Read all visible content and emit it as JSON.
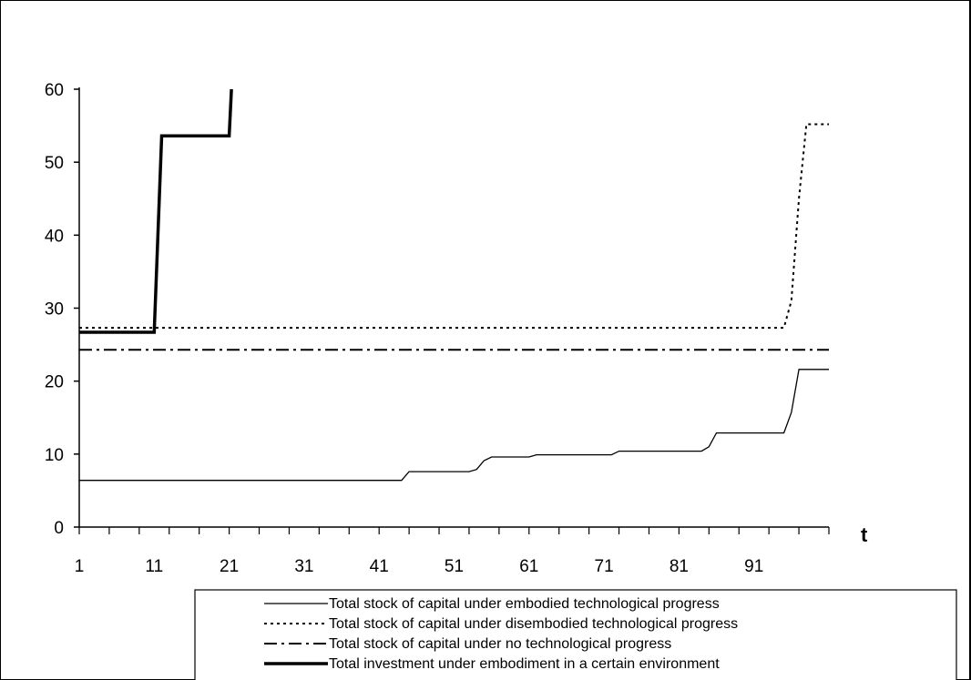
{
  "chart_data": {
    "type": "line",
    "xlabel": "t",
    "ylabel": "",
    "xlim": [
      1,
      101
    ],
    "ylim": [
      0,
      60
    ],
    "x_tick_labels": [
      "1",
      "11",
      "21",
      "31",
      "41",
      "51",
      "61",
      "71",
      "81",
      "91"
    ],
    "y_tick_labels": [
      "0",
      "10",
      "20",
      "30",
      "40",
      "50",
      "60"
    ],
    "grid": false,
    "legend_position": "bottom-right",
    "series": [
      {
        "name": "Total stock of capital under embodied technological progress",
        "style": "solid-thin",
        "color": "#000000",
        "points": [
          [
            1,
            6.4
          ],
          [
            44,
            6.4
          ],
          [
            45,
            7.6
          ],
          [
            53,
            7.6
          ],
          [
            54,
            7.9
          ],
          [
            55,
            9.1
          ],
          [
            56,
            9.6
          ],
          [
            61,
            9.6
          ],
          [
            62,
            9.9
          ],
          [
            72,
            9.9
          ],
          [
            73,
            10.4
          ],
          [
            84,
            10.4
          ],
          [
            85,
            11.0
          ],
          [
            86,
            12.9
          ],
          [
            95,
            12.9
          ],
          [
            96,
            15.7
          ],
          [
            97,
            21.6
          ],
          [
            101,
            21.6
          ]
        ]
      },
      {
        "name": "Total stock of capital under disembodied technological progress",
        "style": "dotted",
        "color": "#000000",
        "points": [
          [
            1,
            27.3
          ],
          [
            95,
            27.3
          ],
          [
            96,
            31
          ],
          [
            97,
            45
          ],
          [
            98,
            55.2
          ],
          [
            101,
            55.2
          ]
        ]
      },
      {
        "name": "Total stock of capital under no technological progress",
        "style": "dash-dot",
        "color": "#000000",
        "points": [
          [
            1,
            24.3
          ],
          [
            101,
            24.3
          ]
        ]
      },
      {
        "name": "Total investment under embodiment in a certain environment",
        "style": "solid-thick",
        "color": "#000000",
        "points": [
          [
            1,
            26.7
          ],
          [
            11,
            26.7
          ],
          [
            12,
            53.6
          ],
          [
            21,
            53.6
          ],
          [
            21.3,
            60
          ]
        ]
      }
    ]
  }
}
